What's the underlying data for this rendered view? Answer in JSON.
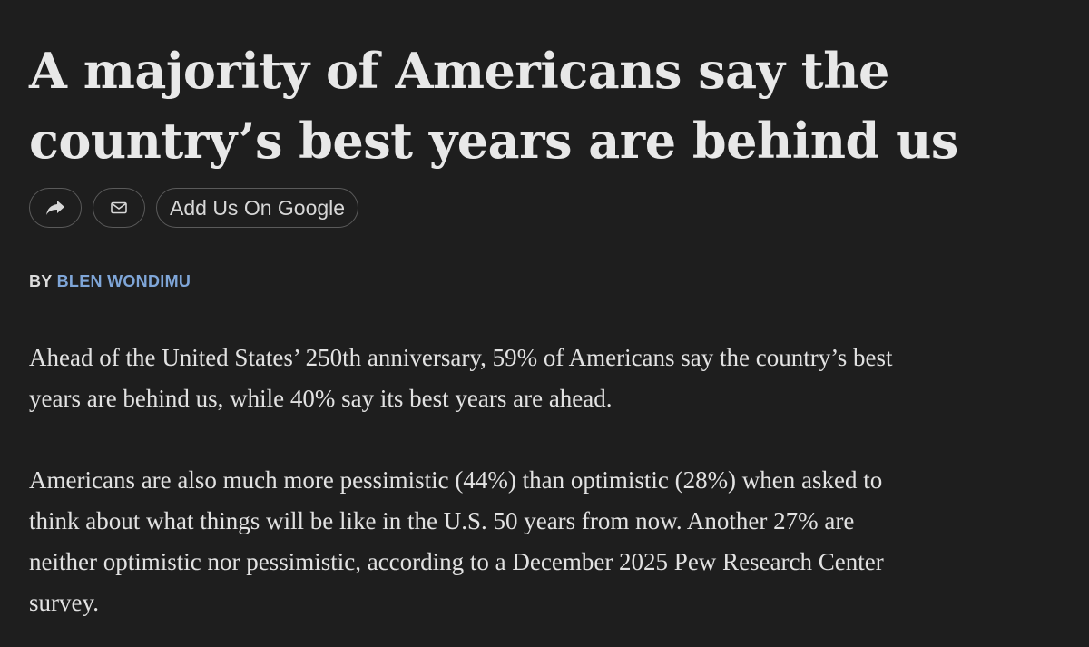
{
  "headline": {
    "line1": "A majority of Americans say the",
    "line2": "country’s best years are behind us"
  },
  "actions": {
    "share_icon": "share-arrow-icon",
    "email_icon": "envelope-icon",
    "google_label": "Add Us On Google"
  },
  "byline": {
    "prefix": "BY",
    "author": "BLEN WONDIMU"
  },
  "body": {
    "p1": [
      "Ahead of the United States’ 250th anniversary, 59% of Americans say the country’s best",
      "years are behind us, while 40% say its best years are ahead."
    ],
    "p2": [
      "Americans are also much more pessimistic (44%) than optimistic (28%) when asked to",
      "think about what things will be like in the U.S. 50 years from now. Another 27% are",
      "neither optimistic nor pessimistic, according to a December 2025 Pew Research Center",
      "survey."
    ]
  },
  "colors": {
    "background": "#1e1e1e",
    "text": "#e6e6e6",
    "author_link": "#7fa6d8",
    "button_border": "#5a5a5a"
  }
}
